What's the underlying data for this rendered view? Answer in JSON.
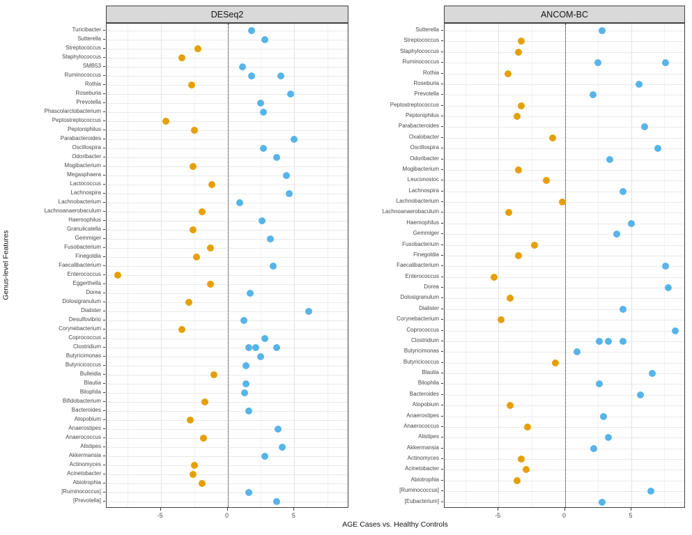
{
  "figure": {
    "x_axis_title": "AGE Cases vs. Healthy Controls",
    "y_axis_title": "Genus-level Features",
    "x_ticks": [
      {
        "value": -5,
        "label": "-5"
      },
      {
        "value": 0,
        "label": "0"
      },
      {
        "value": 5,
        "label": "5"
      }
    ],
    "xlim": [
      -9.05,
      9.1
    ],
    "colors": {
      "positive_points": "#56B4E9",
      "negative_points": "#E69F00",
      "strip_background": "#D9D9D9",
      "zero_reference_line": "#1a1a1a"
    }
  },
  "chart_data": [
    {
      "type": "scatter",
      "title": "DESeq2",
      "xlabel": "AGE Cases vs. Healthy Controls",
      "ylabel": "Genus-level Features",
      "xlim": [
        -9,
        9
      ],
      "x_ticks": [
        -5,
        0,
        5
      ],
      "grid": true,
      "legend": false,
      "color_rule": "negative values orange #E69F00, positive values blue #56B4E9",
      "zero_line": "dotted at x=0",
      "points": [
        {
          "genus": "Turicibacter",
          "values": [
            1.8
          ]
        },
        {
          "genus": "Sutterella",
          "values": [
            2.8
          ]
        },
        {
          "genus": "Streptococcus",
          "values": [
            -2.2
          ]
        },
        {
          "genus": "Staphylococcus",
          "values": [
            -3.4
          ]
        },
        {
          "genus": "SMB53",
          "values": [
            1.1
          ]
        },
        {
          "genus": "Ruminococcus",
          "values": [
            1.8,
            4.0
          ]
        },
        {
          "genus": "Rothia",
          "values": [
            -2.7
          ]
        },
        {
          "genus": "Roseburia",
          "values": [
            4.7
          ]
        },
        {
          "genus": "Prevotella",
          "values": [
            2.5
          ]
        },
        {
          "genus": "Phascolarctobacterium",
          "values": [
            2.7
          ]
        },
        {
          "genus": "Peptostreptococcus",
          "values": [
            -4.6
          ]
        },
        {
          "genus": "Peptoniphilus",
          "values": [
            -2.5
          ]
        },
        {
          "genus": "Parabacteroides",
          "values": [
            5.0
          ]
        },
        {
          "genus": "Oscillospira",
          "values": [
            2.7
          ]
        },
        {
          "genus": "Odoribacter",
          "values": [
            3.7
          ]
        },
        {
          "genus": "Mogibacterium",
          "values": [
            -2.6
          ]
        },
        {
          "genus": "Megasphaera",
          "values": [
            4.4
          ]
        },
        {
          "genus": "Lactococcus",
          "values": [
            -1.2
          ]
        },
        {
          "genus": "Lachnospira",
          "values": [
            4.6
          ]
        },
        {
          "genus": "Lachnobacterium",
          "values": [
            0.9
          ]
        },
        {
          "genus": "Lachnoanaerobaculum",
          "values": [
            -1.9
          ]
        },
        {
          "genus": "Haemophilus",
          "values": [
            2.6
          ]
        },
        {
          "genus": "Granulicatella",
          "values": [
            -2.6
          ]
        },
        {
          "genus": "Gemmiger",
          "values": [
            3.2
          ]
        },
        {
          "genus": "Fusobacterium",
          "values": [
            -1.3
          ]
        },
        {
          "genus": "Finegoldia",
          "values": [
            -2.3
          ]
        },
        {
          "genus": "Faecalibacterium",
          "values": [
            3.4
          ]
        },
        {
          "genus": "Enterococcus",
          "values": [
            -8.2
          ]
        },
        {
          "genus": "Eggerthella",
          "values": [
            -1.3
          ]
        },
        {
          "genus": "Dorea",
          "values": [
            1.7
          ]
        },
        {
          "genus": "Dolosigranulum",
          "values": [
            -2.9
          ]
        },
        {
          "genus": "Dialister",
          "values": [
            6.1
          ]
        },
        {
          "genus": "Desulfovibrio",
          "values": [
            1.2
          ]
        },
        {
          "genus": "Corynebacterium",
          "values": [
            -3.4
          ]
        },
        {
          "genus": "Coprococcus",
          "values": [
            2.8
          ]
        },
        {
          "genus": "Clostridium",
          "values": [
            1.6,
            2.1,
            3.7
          ]
        },
        {
          "genus": "Butyricimonas",
          "values": [
            2.5
          ]
        },
        {
          "genus": "Butyricicoccus",
          "values": [
            1.4
          ]
        },
        {
          "genus": "Bulleidia",
          "values": [
            -1.0
          ]
        },
        {
          "genus": "Blautia",
          "values": [
            1.4
          ]
        },
        {
          "genus": "Bilophila",
          "values": [
            1.3
          ]
        },
        {
          "genus": "Bifidobacterium",
          "values": [
            -1.7
          ]
        },
        {
          "genus": "Bacteroides",
          "values": [
            1.6
          ]
        },
        {
          "genus": "Atopobium",
          "values": [
            -2.8
          ]
        },
        {
          "genus": "Anaerostipes",
          "values": [
            3.8
          ]
        },
        {
          "genus": "Anaerococcus",
          "values": [
            -1.8
          ]
        },
        {
          "genus": "Alistipes",
          "values": [
            4.1
          ]
        },
        {
          "genus": "Akkermansia",
          "values": [
            2.8
          ]
        },
        {
          "genus": "Actinomyces",
          "values": [
            -2.5
          ]
        },
        {
          "genus": "Acinetobacter",
          "values": [
            -2.6
          ]
        },
        {
          "genus": "Abiotrophia",
          "values": [
            -1.9
          ]
        },
        {
          "genus": "[Ruminococcus]",
          "values": [
            1.6
          ]
        },
        {
          "genus": "[Prevotella]",
          "values": [
            3.7
          ]
        }
      ]
    },
    {
      "type": "scatter",
      "title": "ANCOM-BC",
      "xlabel": "AGE Cases vs. Healthy Controls",
      "ylabel": "Genus-level Features",
      "xlim": [
        -9,
        9
      ],
      "x_ticks": [
        -5,
        0,
        5
      ],
      "grid": true,
      "legend": false,
      "color_rule": "negative values orange #E69F00, positive values blue #56B4E9",
      "zero_line": "dotted at x=0",
      "points": [
        {
          "genus": "Sutterella",
          "values": [
            2.8
          ]
        },
        {
          "genus": "Streptococcus",
          "values": [
            -3.3
          ]
        },
        {
          "genus": "Staphylococcus",
          "values": [
            -3.5
          ]
        },
        {
          "genus": "Ruminococcus",
          "values": [
            2.5,
            7.6
          ]
        },
        {
          "genus": "Rothia",
          "values": [
            -4.3
          ]
        },
        {
          "genus": "Roseburia",
          "values": [
            5.6
          ]
        },
        {
          "genus": "Prevotella",
          "values": [
            2.1
          ]
        },
        {
          "genus": "Peptostreptococcus",
          "values": [
            -3.3
          ]
        },
        {
          "genus": "Peptoniphilus",
          "values": [
            -3.6
          ]
        },
        {
          "genus": "Parabacteroides",
          "values": [
            6.0
          ]
        },
        {
          "genus": "Oxalobacter",
          "values": [
            -0.9
          ]
        },
        {
          "genus": "Oscillospira",
          "values": [
            7.0
          ]
        },
        {
          "genus": "Odoribacter",
          "values": [
            3.4
          ]
        },
        {
          "genus": "Mogibacterium",
          "values": [
            -3.5
          ]
        },
        {
          "genus": "Leuconostoc",
          "values": [
            -1.4
          ]
        },
        {
          "genus": "Lachnospira",
          "values": [
            4.4
          ]
        },
        {
          "genus": "Lachnobacterium",
          "values": [
            -0.2
          ]
        },
        {
          "genus": "Lachnoanaerobaculum",
          "values": [
            -4.2
          ]
        },
        {
          "genus": "Haemophilus",
          "values": [
            5.0
          ]
        },
        {
          "genus": "Gemmiger",
          "values": [
            3.9
          ]
        },
        {
          "genus": "Fusobacterium",
          "values": [
            -2.3
          ]
        },
        {
          "genus": "Finegoldia",
          "values": [
            -3.5
          ]
        },
        {
          "genus": "Faecalibacterium",
          "values": [
            7.6
          ]
        },
        {
          "genus": "Enterococcus",
          "values": [
            -5.3
          ]
        },
        {
          "genus": "Dorea",
          "values": [
            7.8
          ]
        },
        {
          "genus": "Dolosigranulum",
          "values": [
            -4.1
          ]
        },
        {
          "genus": "Dialister",
          "values": [
            4.4
          ]
        },
        {
          "genus": "Corynebacterium",
          "values": [
            -4.8
          ]
        },
        {
          "genus": "Coprococcus",
          "values": [
            8.3
          ]
        },
        {
          "genus": "Clostridium",
          "values": [
            2.6,
            3.3,
            4.4
          ]
        },
        {
          "genus": "Butyricimonas",
          "values": [
            0.9
          ]
        },
        {
          "genus": "Butyricicoccus",
          "values": [
            -0.7
          ]
        },
        {
          "genus": "Blautia",
          "values": [
            6.6
          ]
        },
        {
          "genus": "Bilophila",
          "values": [
            2.6
          ]
        },
        {
          "genus": "Bacteroides",
          "values": [
            5.7
          ]
        },
        {
          "genus": "Atopobium",
          "values": [
            -4.1
          ]
        },
        {
          "genus": "Anaerostipes",
          "values": [
            2.9
          ]
        },
        {
          "genus": "Anaerococcus",
          "values": [
            -2.8
          ]
        },
        {
          "genus": "Alistipes",
          "values": [
            3.3
          ]
        },
        {
          "genus": "Akkermansia",
          "values": [
            2.2
          ]
        },
        {
          "genus": "Actinomyces",
          "values": [
            -3.3
          ]
        },
        {
          "genus": "Acinetobacter",
          "values": [
            -2.9
          ]
        },
        {
          "genus": "Abiotrophia",
          "values": [
            -3.6
          ]
        },
        {
          "genus": "[Ruminococcus]",
          "values": [
            6.5
          ]
        },
        {
          "genus": "[Eubacterium]",
          "values": [
            2.8
          ]
        }
      ]
    }
  ]
}
